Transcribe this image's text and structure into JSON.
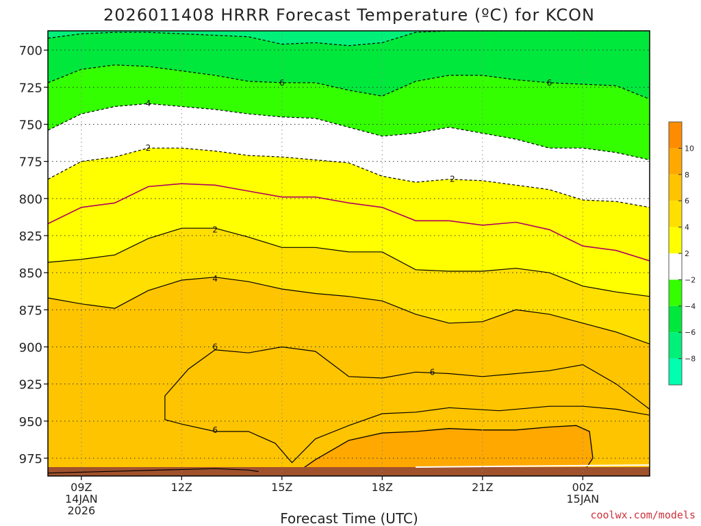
{
  "chart_data": {
    "type": "contour",
    "title": "2026011408 HRRR Forecast Temperature (ºC) for KCON",
    "xlabel": "Forecast Time (UTC)",
    "ylabel": "",
    "credit": "coolwx.com/models",
    "x_range_hours": [
      8,
      26
    ],
    "y_range_hpa": [
      987,
      687
    ],
    "y_ticks": [
      "700",
      "725",
      "750",
      "775",
      "800",
      "825",
      "850",
      "875",
      "900",
      "925",
      "950",
      "975"
    ],
    "x_ticks": [
      {
        "hour": 9,
        "lines": [
          "09Z",
          "14JAN",
          "2026"
        ]
      },
      {
        "hour": 12,
        "lines": [
          "12Z"
        ]
      },
      {
        "hour": 15,
        "lines": [
          "15Z"
        ]
      },
      {
        "hour": 18,
        "lines": [
          "18Z"
        ]
      },
      {
        "hour": 21,
        "lines": [
          "21Z"
        ]
      },
      {
        "hour": 24,
        "lines": [
          "00Z",
          "15JAN"
        ]
      }
    ],
    "colorbar_ticks": [
      "10",
      "8",
      "6",
      "4",
      "2",
      "−2",
      "−4",
      "−6",
      "−8"
    ],
    "colorbar_colors": [
      "#ff8c00",
      "#ffa800",
      "#ffc400",
      "#ffdf00",
      "#ffff00",
      "#ffffff",
      "#33ff00",
      "#00e83c",
      "#00f07a",
      "#00ffb0"
    ],
    "fill_colors": {
      "above_6": "#ffc400",
      "four_to_six": "#ffdf00",
      "two_to_four": "#ffff00",
      "minus2_to_2": "#ffffff",
      "minus4_to_minus2": "#33ff00",
      "minus6_to_minus4": "#00e83c",
      "below_minus6": "#00f07a",
      "ground": "#a0522d",
      "above_8": "#ffa800"
    },
    "contours": [
      {
        "level": 0,
        "color": "#b00060",
        "points": [
          [
            8,
            817
          ],
          [
            9,
            806
          ],
          [
            10,
            803
          ],
          [
            11,
            792
          ],
          [
            12,
            790
          ],
          [
            13,
            791
          ],
          [
            14,
            795
          ],
          [
            15,
            799
          ],
          [
            16,
            799
          ],
          [
            17,
            803
          ],
          [
            18,
            806
          ],
          [
            19,
            815
          ],
          [
            20,
            815
          ],
          [
            21,
            818
          ],
          [
            22,
            816
          ],
          [
            23,
            821
          ],
          [
            24,
            832
          ],
          [
            25,
            835
          ],
          [
            26,
            842
          ]
        ]
      },
      {
        "level": 2,
        "color": "#000000",
        "points": [
          [
            8,
            843
          ],
          [
            9,
            841
          ],
          [
            10,
            838
          ],
          [
            11,
            827
          ],
          [
            12,
            820
          ],
          [
            13,
            820
          ],
          [
            14,
            826
          ],
          [
            15,
            833
          ],
          [
            16,
            833
          ],
          [
            17,
            836
          ],
          [
            18,
            836
          ],
          [
            19,
            848
          ],
          [
            20,
            849
          ],
          [
            21,
            849
          ],
          [
            22,
            847
          ],
          [
            23,
            850
          ],
          [
            24,
            859
          ],
          [
            25,
            863
          ],
          [
            26,
            866
          ]
        ]
      },
      {
        "level": 4,
        "color": "#000000",
        "points": [
          [
            8,
            867
          ],
          [
            9,
            871
          ],
          [
            10,
            874
          ],
          [
            11,
            862
          ],
          [
            12,
            855
          ],
          [
            13,
            853
          ],
          [
            14,
            856
          ],
          [
            15,
            861
          ],
          [
            16,
            864
          ],
          [
            17,
            866
          ],
          [
            18,
            869
          ],
          [
            19,
            878
          ],
          [
            20,
            884
          ],
          [
            21,
            883
          ],
          [
            22,
            875
          ],
          [
            23,
            878
          ],
          [
            24,
            884
          ],
          [
            25,
            890
          ],
          [
            26,
            898
          ]
        ]
      },
      {
        "level": 6,
        "color": "#000000",
        "closed": true,
        "points": [
          [
            11.5,
            933
          ],
          [
            12.2,
            915
          ],
          [
            13,
            902
          ],
          [
            14,
            904
          ],
          [
            15,
            900
          ],
          [
            16,
            903
          ],
          [
            17,
            920
          ],
          [
            18,
            921
          ],
          [
            19,
            917
          ],
          [
            20,
            918
          ],
          [
            21,
            920
          ],
          [
            22,
            918
          ],
          [
            23,
            916
          ],
          [
            24,
            912
          ],
          [
            25,
            925
          ],
          [
            26,
            942
          ],
          [
            26,
            946
          ],
          [
            25,
            942
          ],
          [
            24,
            940
          ],
          [
            23,
            940
          ],
          [
            21.5,
            943
          ],
          [
            20,
            941
          ],
          [
            19,
            944
          ],
          [
            18,
            945
          ],
          [
            17,
            953
          ],
          [
            16,
            962
          ],
          [
            15.3,
            978
          ],
          [
            14.8,
            965
          ],
          [
            14,
            957
          ],
          [
            13,
            957
          ],
          [
            12,
            952
          ],
          [
            11.5,
            949
          ]
        ]
      },
      {
        "level": 6,
        "color": "#000000",
        "points": [
          [
            8,
            985
          ],
          [
            13,
            982
          ],
          [
            14,
            983
          ],
          [
            14.3,
            984
          ]
        ]
      },
      {
        "level": -2,
        "color": "#000000",
        "dashed": true,
        "points": [
          [
            8,
            787
          ],
          [
            9,
            775
          ],
          [
            10,
            772
          ],
          [
            11,
            766
          ],
          [
            12,
            766
          ],
          [
            13,
            768
          ],
          [
            14,
            771
          ],
          [
            15,
            772
          ],
          [
            16,
            774
          ],
          [
            17,
            776
          ],
          [
            18,
            785
          ],
          [
            19,
            789
          ],
          [
            20,
            787
          ],
          [
            21,
            788
          ],
          [
            22,
            791
          ],
          [
            23,
            794
          ],
          [
            24,
            801
          ],
          [
            25,
            802
          ],
          [
            26,
            806
          ]
        ]
      },
      {
        "level": -4,
        "color": "#000000",
        "dashed": true,
        "points": [
          [
            8,
            754
          ],
          [
            9,
            743
          ],
          [
            10,
            738
          ],
          [
            11,
            736
          ],
          [
            12,
            738
          ],
          [
            13,
            740
          ],
          [
            14,
            743
          ],
          [
            15,
            745
          ],
          [
            16,
            746
          ],
          [
            17,
            752
          ],
          [
            18,
            758
          ],
          [
            19,
            756
          ],
          [
            20,
            752
          ],
          [
            21,
            756
          ],
          [
            22,
            760
          ],
          [
            23,
            766
          ],
          [
            24,
            766
          ],
          [
            25,
            769
          ],
          [
            26,
            774
          ]
        ]
      },
      {
        "level": -6,
        "color": "#000000",
        "dashed": true,
        "points": [
          [
            8,
            722
          ],
          [
            9,
            713
          ],
          [
            10,
            710
          ],
          [
            11,
            711
          ],
          [
            12,
            714
          ],
          [
            13,
            717
          ],
          [
            14,
            721
          ],
          [
            15,
            722
          ],
          [
            16,
            722
          ],
          [
            17,
            727
          ],
          [
            18,
            731
          ],
          [
            19,
            721
          ],
          [
            20,
            717
          ],
          [
            21,
            717
          ],
          [
            22,
            720
          ],
          [
            23,
            722
          ],
          [
            24,
            723
          ],
          [
            25,
            724
          ],
          [
            26,
            733
          ]
        ]
      },
      {
        "level": -8,
        "color": "#000000",
        "dashed": true,
        "points": [
          [
            8,
            692
          ],
          [
            9,
            689
          ],
          [
            10,
            688
          ],
          [
            11,
            688
          ],
          [
            12,
            689
          ],
          [
            13,
            690
          ],
          [
            14,
            691
          ],
          [
            15,
            696
          ],
          [
            16,
            695
          ],
          [
            17,
            697
          ],
          [
            18,
            695
          ],
          [
            19,
            688
          ],
          [
            20,
            687
          ],
          [
            26,
            687
          ]
        ]
      }
    ],
    "contour_labels": [
      {
        "text": "2",
        "hour": 13,
        "hpa": 821
      },
      {
        "text": "4",
        "hour": 13,
        "hpa": 854
      },
      {
        "text": "6",
        "hour": 13,
        "hpa": 900
      },
      {
        "text": "6",
        "hour": 19.5,
        "hpa": 917
      },
      {
        "text": "6",
        "hour": 13,
        "hpa": 956
      },
      {
        "text": "2",
        "hour": 11,
        "hpa": 766
      },
      {
        "text": "2",
        "hour": 20.1,
        "hpa": 787
      },
      {
        "text": "4",
        "hour": 11,
        "hpa": 736
      },
      {
        "text": "6",
        "hour": 15,
        "hpa": 722
      },
      {
        "text": "6",
        "hour": 23,
        "hpa": 722
      }
    ]
  }
}
